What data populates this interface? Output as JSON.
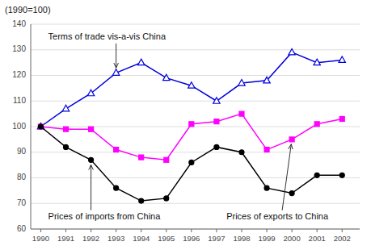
{
  "chart_data": {
    "type": "line",
    "ylabel": "(1990=100)",
    "x": [
      1990,
      1991,
      1992,
      1993,
      1994,
      1995,
      1996,
      1997,
      1998,
      1999,
      2000,
      2001,
      2002
    ],
    "xlim": [
      1989.6,
      2002.7
    ],
    "xticks": [
      1990,
      1991,
      1992,
      1993,
      1994,
      1995,
      1996,
      1997,
      1998,
      1999,
      2000,
      2001,
      2002
    ],
    "ylim": [
      60,
      140
    ],
    "yticks": [
      60,
      70,
      80,
      90,
      100,
      110,
      120,
      130,
      140
    ],
    "grid": true,
    "series": [
      {
        "color": "#0000dd",
        "marker": "triangle",
        "values": [
          100,
          107,
          113,
          121,
          125,
          119,
          116,
          110,
          117,
          118,
          129,
          125,
          126
        ]
      },
      {
        "color": "#ff00ff",
        "marker": "square",
        "values": [
          100,
          99,
          99,
          91,
          88,
          87,
          101,
          102,
          105,
          91,
          95,
          101,
          103
        ]
      },
      {
        "color": "#000000",
        "marker": "circle",
        "values": [
          100,
          92,
          87,
          76,
          71,
          72,
          86,
          92,
          90,
          76,
          74,
          81,
          81
        ]
      }
    ],
    "annotations": [
      "Terms of trade vis-a-vis China",
      "Prices of exports to China",
      "Prices of imports from China"
    ]
  }
}
